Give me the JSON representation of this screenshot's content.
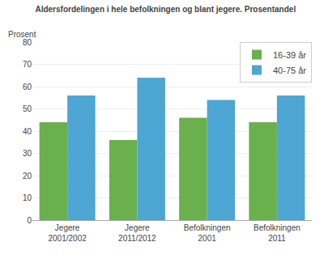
{
  "chart_data": {
    "type": "bar",
    "title": "Aldersfordelingen i hele befolkningen og blant jegere. Prosentandel",
    "ylabel": "Prosent",
    "categories": [
      "Jegere\n2001/2002",
      "Jegere\n2011/2012",
      "Befolkningen\n2001",
      "Befolkningen\n2011"
    ],
    "series": [
      {
        "name": "16-39 år",
        "color": "#6ab04c",
        "values": [
          44,
          36,
          46,
          44
        ]
      },
      {
        "name": "40-75 år",
        "color": "#4da6d4",
        "values": [
          56,
          64,
          54,
          56
        ]
      }
    ],
    "ylim": [
      0,
      80
    ],
    "yticks": [
      0,
      10,
      20,
      30,
      40,
      50,
      60,
      70,
      80
    ],
    "grid": true,
    "legend": "upper right"
  }
}
